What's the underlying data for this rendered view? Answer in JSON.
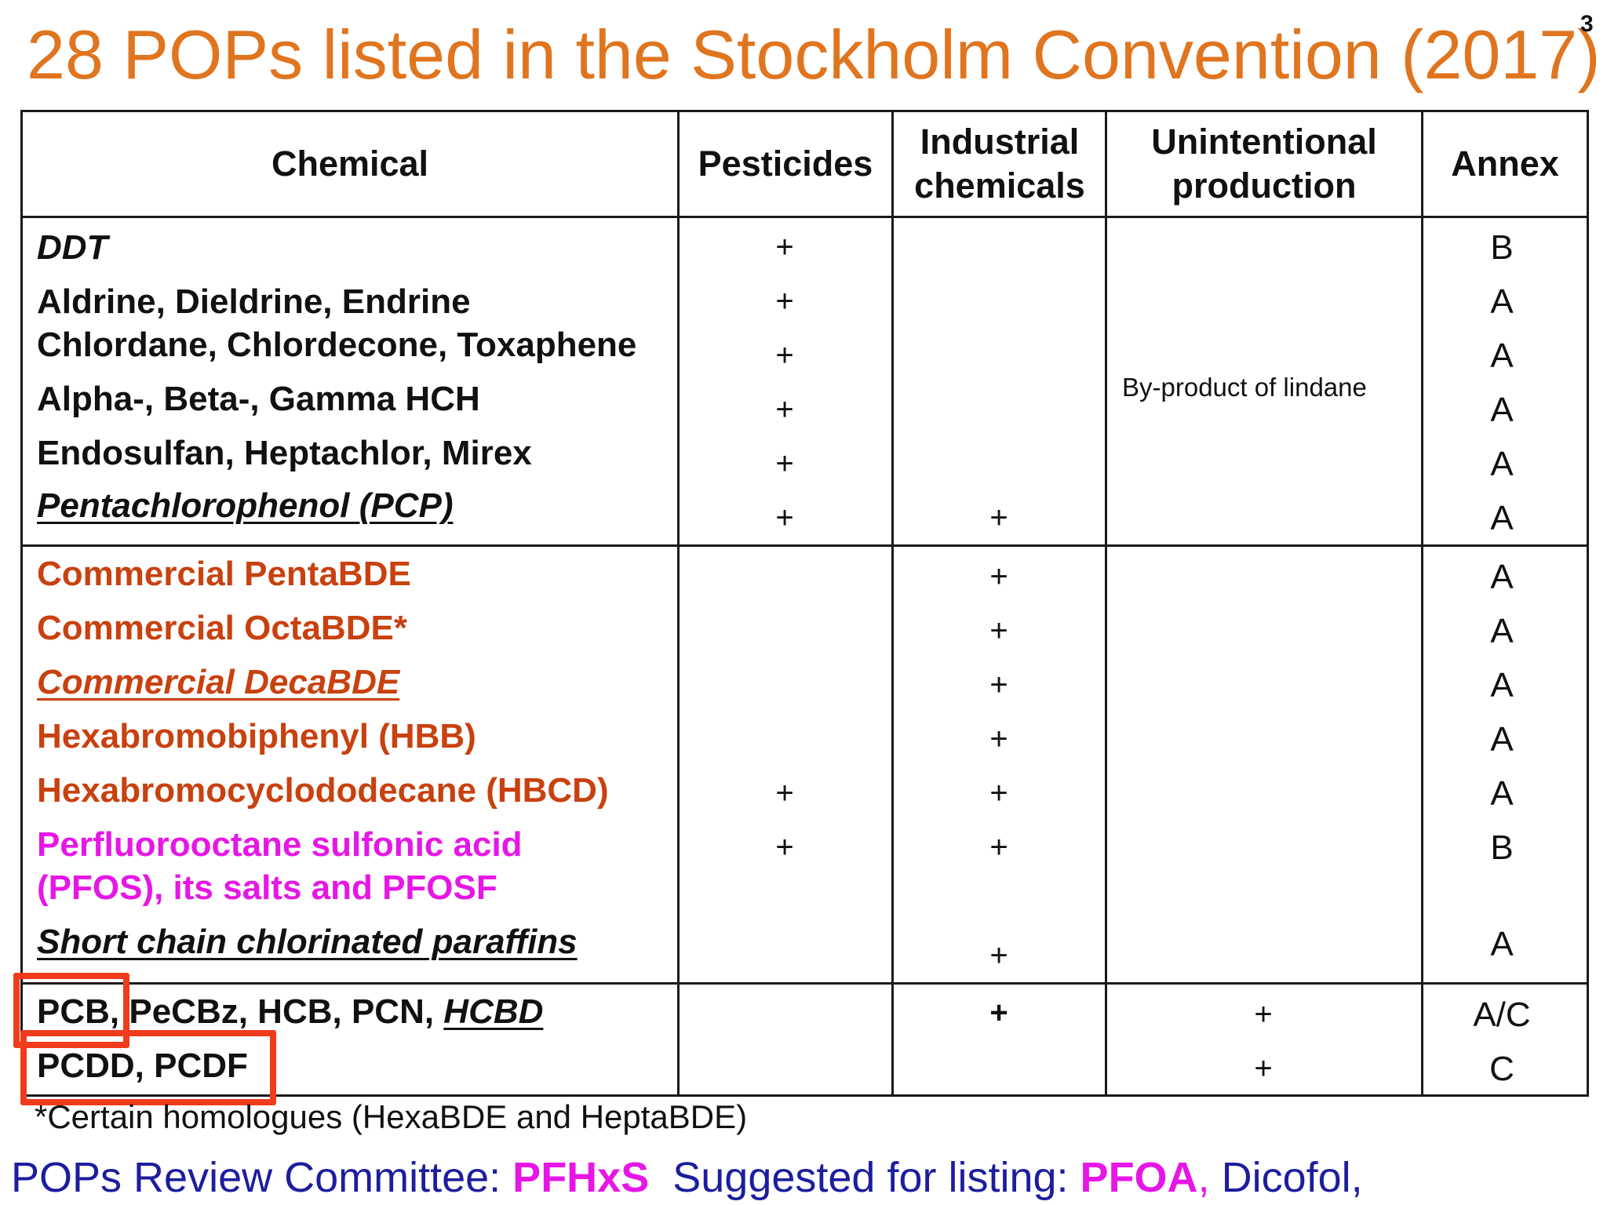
{
  "title": "28 POPs listed in the Stockholm Convention (2017)",
  "page_number": "3",
  "headers": {
    "chemical": "Chemical",
    "pesticides": "Pesticides",
    "industrial_1": "Industrial",
    "industrial_2": "chemicals",
    "unintentional_1": "Unintentional",
    "unintentional_2": "production",
    "annex": "Annex"
  },
  "group1": [
    {
      "name": "DDT",
      "pesticide": "+",
      "industrial": "",
      "annex": "B"
    },
    {
      "name": "Aldrine, Dieldrine, Endrine",
      "pesticide": "+",
      "industrial": "",
      "annex": "A"
    },
    {
      "name": "Chlordane, Chlordecone, Toxaphene",
      "pesticide": "+",
      "industrial": "",
      "annex": "A"
    },
    {
      "name": "Alpha-, Beta-, Gamma HCH",
      "pesticide": "+",
      "industrial": "",
      "annex": "A"
    },
    {
      "name": "Endosulfan, Heptachlor, Mirex",
      "pesticide": "+",
      "industrial": "",
      "annex": "A"
    },
    {
      "name": "Pentachlorophenol (PCP)",
      "pesticide": "+",
      "industrial": "+",
      "annex": "A"
    }
  ],
  "group1_unintentional_note": "By-product of  lindane",
  "group2": [
    {
      "name": "Commercial PentaBDE",
      "pesticide": "",
      "industrial": "+",
      "annex": "A"
    },
    {
      "name": "Commercial OctaBDE*",
      "pesticide": "",
      "industrial": "+",
      "annex": "A"
    },
    {
      "name": "Commercial DecaBDE",
      "pesticide": "",
      "industrial": "+",
      "annex": "A"
    },
    {
      "name": "Hexabromobiphenyl (HBB)",
      "pesticide": "",
      "industrial": "+",
      "annex": "A"
    },
    {
      "name": "Hexabromocyclododecane (HBCD)",
      "pesticide": "+",
      "industrial": "+",
      "annex": "A"
    },
    {
      "name": "Perfluorooctane sulfonic acid",
      "name_line2": "(PFOS), its salts and PFOSF",
      "pesticide": "+",
      "industrial": "+",
      "annex": "B"
    },
    {
      "name": "Short chain chlorinated paraffins",
      "pesticide": "",
      "industrial": "+",
      "annex": "A"
    }
  ],
  "group3": [
    {
      "name_part1": "PCB,",
      "name_part2": " PeCBz, HCB, PCN, ",
      "name_part3": "HCBD",
      "industrial": "+",
      "unintentional": "+",
      "annex": "A/C"
    },
    {
      "name": "PCDD, PCDF",
      "unintentional": "+",
      "annex": "C"
    }
  ],
  "footnote": "*Certain homologues (HexaBDE and HeptaBDE)",
  "review": {
    "label": "POPs Review Committee: ",
    "pfhxs": "PFHxS",
    "suggested": "  Suggested for listing: ",
    "pfoa": "PFOA",
    "comma": ",",
    "dicofol": " Dicofol,"
  },
  "colors": {
    "title": "#e0751f",
    "brominated": "#c8410f",
    "fluorinated": "#e617e6",
    "review": "#1d1d9e",
    "highlight_box": "#f03c1c"
  }
}
